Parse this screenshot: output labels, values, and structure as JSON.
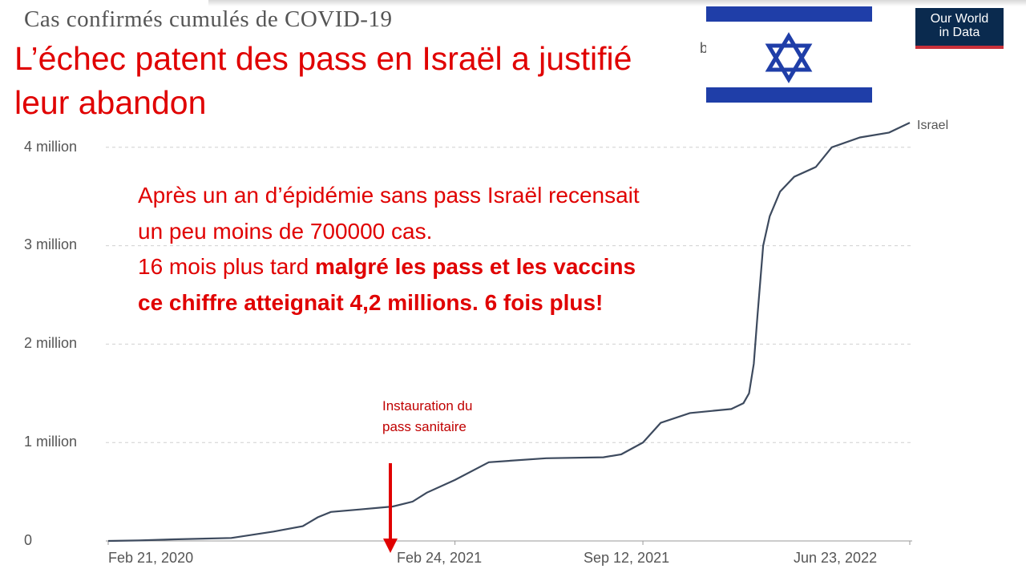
{
  "owid_title": "Cas confirmés cumulés de COVID-19",
  "headline": "L’échec patent des pass en Israël a justifié leur abandon",
  "hidden_fragment": "b",
  "logo": {
    "line1": "Our World",
    "line2": "in Data"
  },
  "colors": {
    "line": "#3d4a5e",
    "accent_red": "#e00000",
    "flag_blue": "#1f3ea8",
    "logo_bg": "#0a2a4e"
  },
  "annotation": {
    "line1": "Après un an d’épidémie sans pass Israël recensait",
    "line2": "un peu moins de 700000 cas.",
    "line3_normal": "16 mois plus tard ",
    "line3_bold": "malgré les pass et les vaccins",
    "line4_bold": "ce chiffre atteignait 4,2 millions. 6 fois plus!"
  },
  "pass_note": {
    "line1": "Instauration du",
    "line2": "pass sanitaire"
  },
  "chart_data": {
    "type": "line",
    "title": "Cas confirmés cumulés de COVID-19",
    "x_tick_labels": [
      "Feb 21, 2020",
      "Feb 24, 2021",
      "Sep 12, 2021",
      "Jun 23, 2022"
    ],
    "y_tick_labels": [
      "0",
      "1 million",
      "2 million",
      "3 million",
      "4 million"
    ],
    "ylim": [
      0,
      4300000
    ],
    "grid": true,
    "series": [
      {
        "name": "Israel",
        "x": [
          "2020-02-21",
          "2020-03-25",
          "2020-05-01",
          "2020-07-01",
          "2020-08-15",
          "2020-09-15",
          "2020-10-01",
          "2020-10-15",
          "2020-11-15",
          "2020-12-20",
          "2021-01-10",
          "2021-01-25",
          "2021-02-24",
          "2021-04-01",
          "2021-06-01",
          "2021-08-01",
          "2021-08-20",
          "2021-09-12",
          "2021-10-01",
          "2021-11-01",
          "2021-12-15",
          "2021-12-28",
          "2022-01-03",
          "2022-01-08",
          "2022-01-12",
          "2022-01-18",
          "2022-01-25",
          "2022-02-05",
          "2022-02-20",
          "2022-03-15",
          "2022-04-01",
          "2022-05-01",
          "2022-06-01",
          "2022-06-23"
        ],
        "y": [
          0,
          5000,
          16000,
          30000,
          95000,
          150000,
          240000,
          295000,
          320000,
          350000,
          400000,
          490000,
          620000,
          800000,
          840000,
          850000,
          880000,
          1000000,
          1200000,
          1300000,
          1340000,
          1400000,
          1500000,
          1800000,
          2300000,
          3000000,
          3300000,
          3550000,
          3700000,
          3800000,
          4000000,
          4100000,
          4150000,
          4250000
        ]
      }
    ],
    "annotations": [
      {
        "label": "Instauration du pass sanitaire",
        "x": "2021-02-24",
        "arrow": "down"
      }
    ]
  }
}
